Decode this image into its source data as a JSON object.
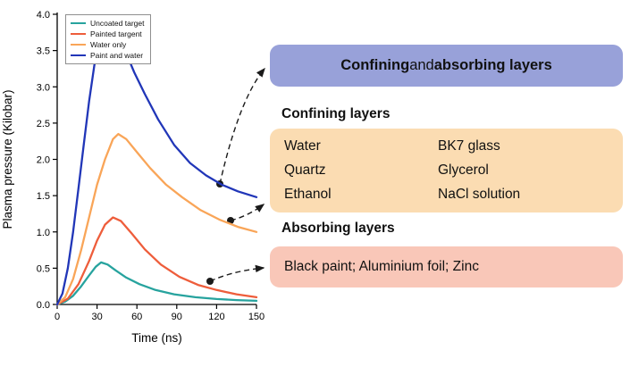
{
  "chart_data": {
    "type": "line",
    "title": "",
    "xlabel": "Time (ns)",
    "ylabel": "Plasma pressure (Kilobar)",
    "xlim": [
      0,
      150
    ],
    "ylim": [
      0,
      4.0
    ],
    "xticks": [
      0,
      30,
      60,
      90,
      120,
      150
    ],
    "yticks": [
      "0.0",
      "0.5",
      "1.0",
      "1.5",
      "2.0",
      "2.5",
      "3.0",
      "3.5",
      "4.0"
    ],
    "grid": false,
    "legend_position": "top-left",
    "series": [
      {
        "name": "Uncoated target",
        "color": "#27a39e",
        "points": [
          [
            0,
            0
          ],
          [
            6,
            0.04
          ],
          [
            12,
            0.12
          ],
          [
            18,
            0.25
          ],
          [
            24,
            0.4
          ],
          [
            29,
            0.52
          ],
          [
            33,
            0.58
          ],
          [
            38,
            0.55
          ],
          [
            44,
            0.47
          ],
          [
            52,
            0.37
          ],
          [
            62,
            0.28
          ],
          [
            74,
            0.2
          ],
          [
            88,
            0.14
          ],
          [
            104,
            0.1
          ],
          [
            120,
            0.075
          ],
          [
            135,
            0.06
          ],
          [
            150,
            0.05
          ]
        ]
      },
      {
        "name": "Painted targent",
        "color": "#ee5d3b",
        "points": [
          [
            0,
            0
          ],
          [
            8,
            0.08
          ],
          [
            16,
            0.28
          ],
          [
            24,
            0.6
          ],
          [
            30,
            0.88
          ],
          [
            36,
            1.1
          ],
          [
            42,
            1.2
          ],
          [
            48,
            1.15
          ],
          [
            56,
            0.98
          ],
          [
            66,
            0.76
          ],
          [
            78,
            0.55
          ],
          [
            92,
            0.38
          ],
          [
            106,
            0.27
          ],
          [
            120,
            0.2
          ],
          [
            135,
            0.14
          ],
          [
            150,
            0.1
          ]
        ]
      },
      {
        "name": "Water only",
        "color": "#f9a558",
        "points": [
          [
            0,
            0
          ],
          [
            6,
            0.1
          ],
          [
            12,
            0.35
          ],
          [
            18,
            0.75
          ],
          [
            24,
            1.2
          ],
          [
            30,
            1.65
          ],
          [
            36,
            2.0
          ],
          [
            42,
            2.28
          ],
          [
            46,
            2.35
          ],
          [
            52,
            2.28
          ],
          [
            60,
            2.1
          ],
          [
            70,
            1.88
          ],
          [
            82,
            1.65
          ],
          [
            94,
            1.48
          ],
          [
            108,
            1.3
          ],
          [
            122,
            1.17
          ],
          [
            136,
            1.07
          ],
          [
            150,
            1.0
          ]
        ]
      },
      {
        "name": "Paint and water",
        "color": "#2136b8",
        "points": [
          [
            0,
            0
          ],
          [
            4,
            0.15
          ],
          [
            8,
            0.5
          ],
          [
            12,
            1.0
          ],
          [
            16,
            1.6
          ],
          [
            20,
            2.2
          ],
          [
            24,
            2.8
          ],
          [
            28,
            3.3
          ],
          [
            32,
            3.6
          ],
          [
            36,
            3.75
          ],
          [
            40,
            3.8
          ],
          [
            44,
            3.76
          ],
          [
            50,
            3.55
          ],
          [
            58,
            3.2
          ],
          [
            66,
            2.9
          ],
          [
            76,
            2.55
          ],
          [
            88,
            2.2
          ],
          [
            100,
            1.95
          ],
          [
            112,
            1.78
          ],
          [
            124,
            1.65
          ],
          [
            136,
            1.56
          ],
          [
            150,
            1.48
          ]
        ]
      }
    ]
  },
  "annotations": {
    "combined": {
      "bold1": "Confining",
      "mid": " and ",
      "bold2": "absorbing layers"
    },
    "confining": {
      "heading": "Confining layers",
      "left": [
        "Water",
        "Quartz",
        "Ethanol"
      ],
      "right": [
        "BK7 glass",
        "Glycerol",
        "NaCl solution"
      ]
    },
    "absorbing": {
      "heading": "Absorbing layers",
      "text": "Black paint; Aluminium foil; Zinc"
    },
    "colors": {
      "combined_bg": "#98a1d9",
      "confining_bg": "#fbdcb2",
      "absorbing_bg": "#f9c7b8",
      "connector": "#1a1a1a"
    }
  }
}
